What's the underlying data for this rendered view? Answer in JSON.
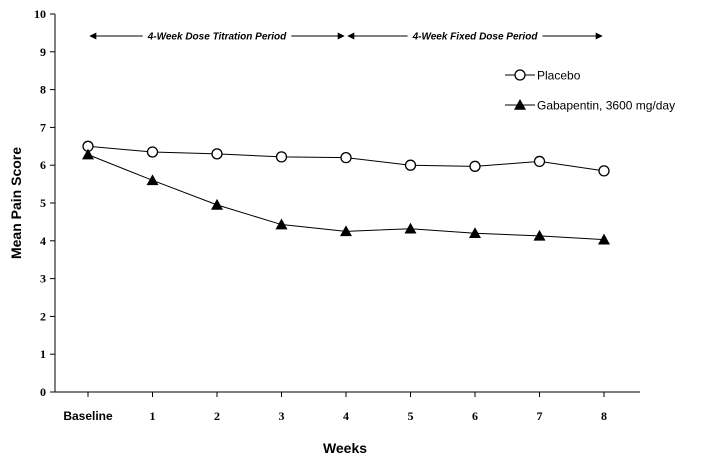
{
  "chart_data": {
    "type": "line",
    "categories": [
      "Baseline",
      "1",
      "2",
      "3",
      "4",
      "5",
      "6",
      "7",
      "8"
    ],
    "xlabel": "Weeks",
    "ylabel": "Mean Pain Score",
    "ylim": [
      0,
      10
    ],
    "yticks": [
      0,
      1,
      2,
      3,
      4,
      5,
      6,
      7,
      8,
      9,
      10
    ],
    "grid": false,
    "legend_position": "top-right",
    "series": [
      {
        "name": "Placebo",
        "marker": "open-circle",
        "values": [
          6.5,
          6.35,
          6.3,
          6.22,
          6.2,
          6.0,
          5.97,
          6.1,
          5.85
        ]
      },
      {
        "name": "Gabapentin, 3600 mg/day",
        "marker": "filled-triangle",
        "values": [
          6.28,
          5.6,
          4.95,
          4.43,
          4.25,
          4.32,
          4.2,
          4.13,
          4.03
        ]
      }
    ],
    "annotations": [
      {
        "text": "4-Week Dose Titration Period",
        "from": "Baseline",
        "to": "4"
      },
      {
        "text": "4-Week Fixed Dose Period",
        "from": "4",
        "to": "8"
      }
    ]
  }
}
